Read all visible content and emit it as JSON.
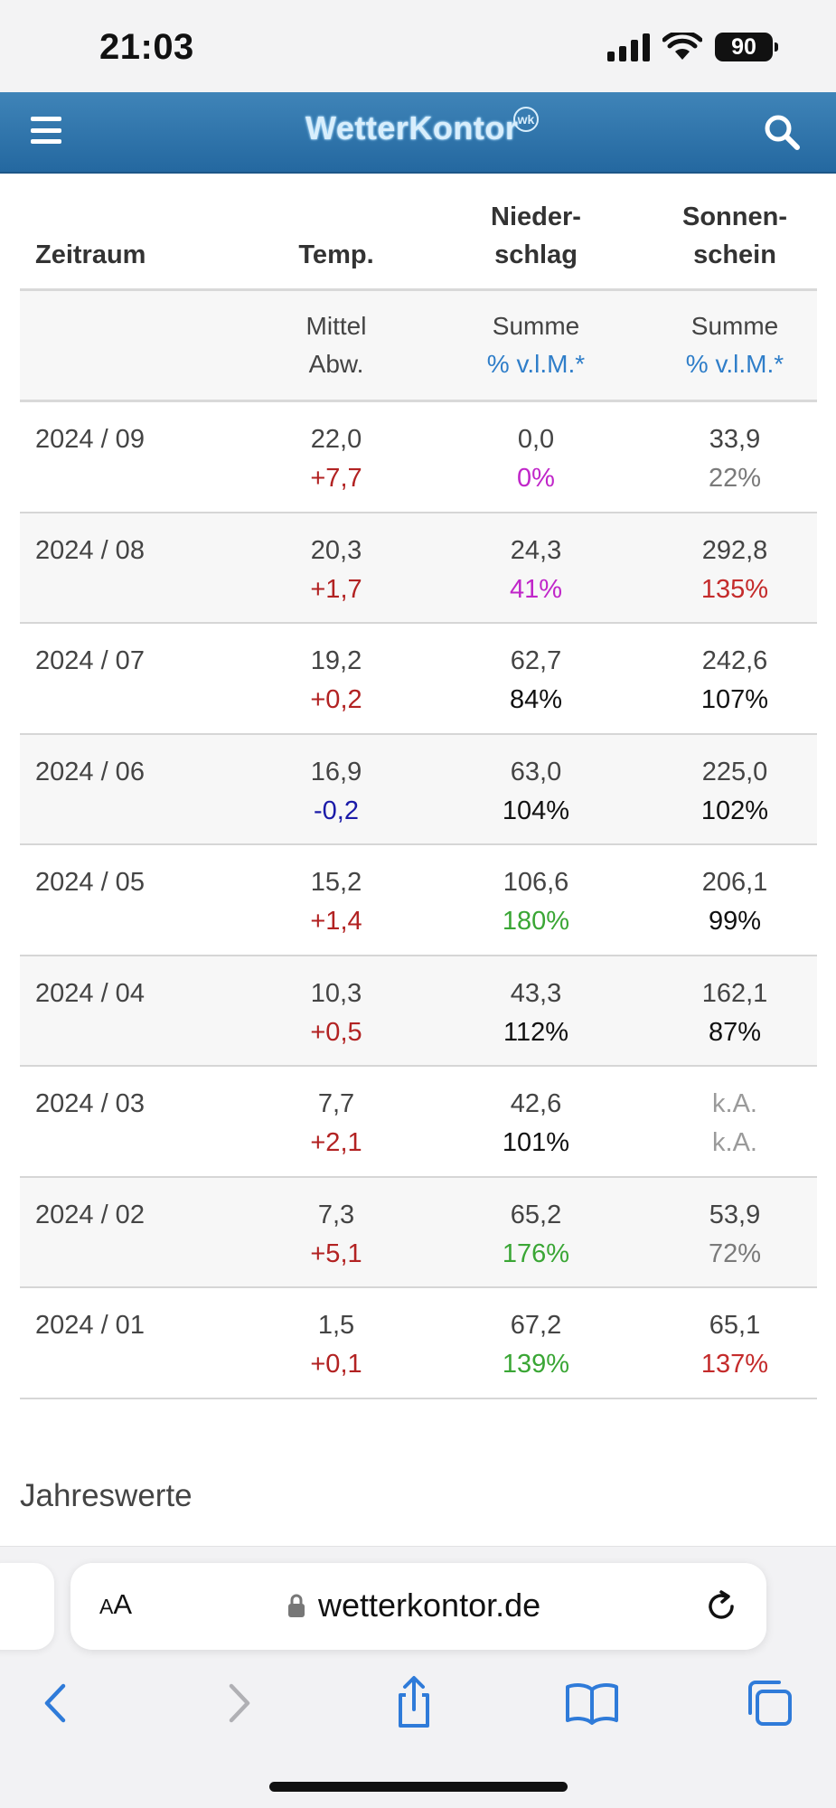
{
  "status_bar": {
    "time": "21:03",
    "battery": "90"
  },
  "header": {
    "logo": "WetterKontor",
    "logo_badge": "wk"
  },
  "table": {
    "columns": {
      "zeitraum": "Zeitraum",
      "temp": "Temp.",
      "nieder_1": "Nieder-",
      "nieder_2": "schlag",
      "sonnen_1": "Sonnen-",
      "sonnen_2": "schein"
    },
    "subheader": {
      "temp_1": "Mittel",
      "temp_2": "Abw.",
      "nieder_1": "Summe",
      "nieder_2": "% v.l.M.*",
      "sonnen_1": "Summe",
      "sonnen_2": "% v.l.M.*"
    },
    "rows": [
      {
        "period": "2024 / 09",
        "temp": "22,0",
        "temp_dev": "+7,7",
        "temp_dev_color": "#b22222",
        "precip": "0,0",
        "precip_pct": "0%",
        "precip_pct_color": "#c026c9",
        "sun": "33,9",
        "sun_pct": "22%",
        "sun_pct_color": "#7a7a7a"
      },
      {
        "period": "2024 / 08",
        "temp": "20,3",
        "temp_dev": "+1,7",
        "temp_dev_color": "#b22222",
        "precip": "24,3",
        "precip_pct": "41%",
        "precip_pct_color": "#c026c9",
        "sun": "292,8",
        "sun_pct": "135%",
        "sun_pct_color": "#c42b2b"
      },
      {
        "period": "2024 / 07",
        "temp": "19,2",
        "temp_dev": "+0,2",
        "temp_dev_color": "#b22222",
        "precip": "62,7",
        "precip_pct": "84%",
        "precip_pct_color": "#111111",
        "sun": "242,6",
        "sun_pct": "107%",
        "sun_pct_color": "#111111"
      },
      {
        "period": "2024 / 06",
        "temp": "16,9",
        "temp_dev": "-0,2",
        "temp_dev_color": "#1a1aa8",
        "precip": "63,0",
        "precip_pct": "104%",
        "precip_pct_color": "#111111",
        "sun": "225,0",
        "sun_pct": "102%",
        "sun_pct_color": "#111111"
      },
      {
        "period": "2024 / 05",
        "temp": "15,2",
        "temp_dev": "+1,4",
        "temp_dev_color": "#b22222",
        "precip": "106,6",
        "precip_pct": "180%",
        "precip_pct_color": "#3aa635",
        "sun": "206,1",
        "sun_pct": "99%",
        "sun_pct_color": "#111111"
      },
      {
        "period": "2024 / 04",
        "temp": "10,3",
        "temp_dev": "+0,5",
        "temp_dev_color": "#b22222",
        "precip": "43,3",
        "precip_pct": "112%",
        "precip_pct_color": "#111111",
        "sun": "162,1",
        "sun_pct": "87%",
        "sun_pct_color": "#111111"
      },
      {
        "period": "2024 / 03",
        "temp": "7,7",
        "temp_dev": "+2,1",
        "temp_dev_color": "#b22222",
        "precip": "42,6",
        "precip_pct": "101%",
        "precip_pct_color": "#111111",
        "sun": "k.A.",
        "sun_pct": "k.A.",
        "sun_pct_color": "#9a9a9a",
        "sun_color": "#9a9a9a"
      },
      {
        "period": "2024 / 02",
        "temp": "7,3",
        "temp_dev": "+5,1",
        "temp_dev_color": "#b22222",
        "precip": "65,2",
        "precip_pct": "176%",
        "precip_pct_color": "#3aa635",
        "sun": "53,9",
        "sun_pct": "72%",
        "sun_pct_color": "#7a7a7a"
      },
      {
        "period": "2024 / 01",
        "temp": "1,5",
        "temp_dev": "+0,1",
        "temp_dev_color": "#b22222",
        "precip": "67,2",
        "precip_pct": "139%",
        "precip_pct_color": "#3aa635",
        "sun": "65,1",
        "sun_pct": "137%",
        "sun_pct_color": "#c42b2b"
      }
    ]
  },
  "section_title": "Jahreswerte",
  "browser": {
    "aa_small": "A",
    "aa_large": "A",
    "url": "wetterkontor.de"
  }
}
